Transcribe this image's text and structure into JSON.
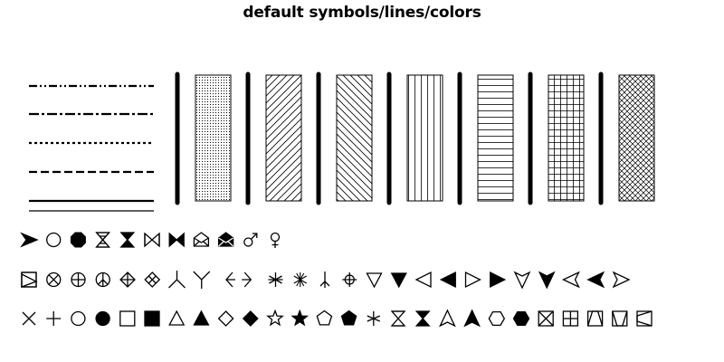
{
  "title": "default symbols/lines/colors",
  "colors": {
    "ink": "#000000",
    "paper": "#ffffff"
  },
  "line_styles": [
    "dash-dot-dot",
    "dash-dot",
    "dotted",
    "dashed",
    "solid",
    "solid-thin"
  ],
  "fill_patterns": [
    "dots",
    "diagonal-up",
    "diagonal-down",
    "vertical",
    "horizontal",
    "grid",
    "crosshatch"
  ],
  "symbol_rows": [
    [
      "arrowhead-right-icon",
      "circle-icon",
      "octagon-filled-icon",
      "hourglass-x-icon",
      "hourglass-filled-icon",
      "bowtie-icon",
      "bowtie-filled-icon",
      "envelope-icon",
      "envelope-filled-icon",
      "male-icon",
      "female-icon"
    ],
    [
      "square-diagonal-triangle-icon",
      "circle-x-icon",
      "circle-plus-icon",
      "peace-icon",
      "diamond-plus-icon",
      "diamond-x-icon",
      "tripod-icon",
      "y-icon",
      "left-arrowhead-line-icon",
      "right-arrowhead-line-icon",
      "asterisk-icon",
      "asterisk-bold-icon",
      "inverted-tripod-icon",
      "circle-crosshair-icon",
      "triangle-down-icon",
      "triangle-down-filled-icon",
      "triangle-left-icon",
      "triangle-left-filled-icon",
      "triangle-right-icon",
      "triangle-right-filled-icon",
      "concave-down-icon",
      "concave-down-filled-icon",
      "concave-left-icon",
      "concave-left-filled-icon",
      "concave-right-icon"
    ],
    [
      "x-icon",
      "plus-icon",
      "circle-icon",
      "circle-filled-icon",
      "square-icon",
      "square-filled-icon",
      "triangle-up-icon",
      "triangle-up-filled-icon",
      "diamond-icon",
      "diamond-filled-icon",
      "star-icon",
      "star-filled-icon",
      "pentagon-icon",
      "pentagon-filled-icon",
      "asterisk-thin-icon",
      "hourglass-icon",
      "hourglass-filled-icon",
      "concave-up-icon",
      "concave-up-filled-icon",
      "hexagon-icon",
      "hexagon-filled-icon",
      "square-x-icon",
      "square-plus-icon",
      "square-triangle-up-icon",
      "square-triangle-down-icon",
      "square-triangle-left-icon"
    ]
  ]
}
